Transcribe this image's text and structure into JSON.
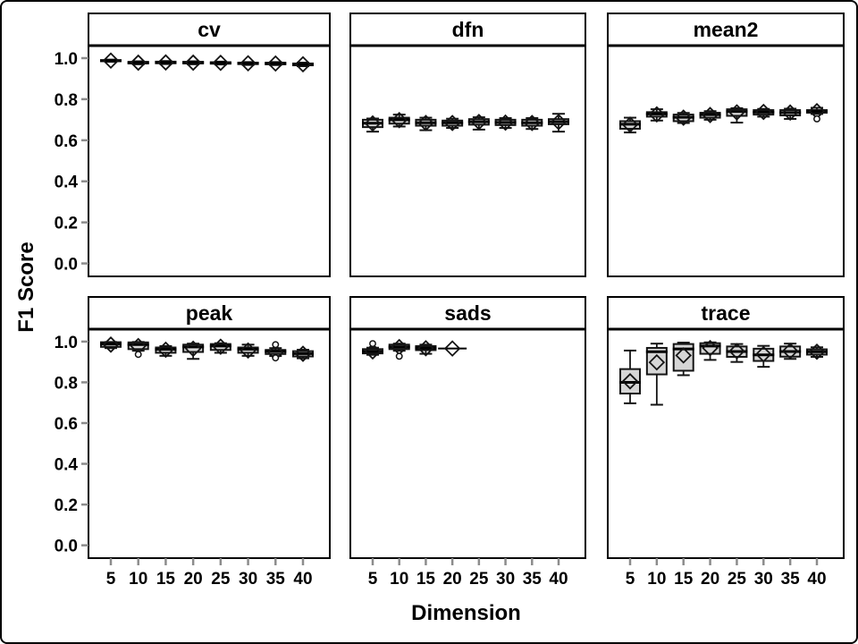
{
  "chart_data": {
    "type": "boxplot",
    "layout": "2x3-panel-grid",
    "xlabel": "Dimension",
    "ylabel": "F1 Score",
    "x_categories": [
      "5",
      "10",
      "15",
      "20",
      "25",
      "30",
      "35",
      "40"
    ],
    "y_tick_labels": [
      "0.0",
      "0.2",
      "0.4",
      "0.6",
      "0.8",
      "1.0"
    ],
    "y_ticks": [
      0.0,
      0.2,
      0.4,
      0.6,
      0.8,
      1.0
    ],
    "ylim": [
      -0.063,
      1.061
    ],
    "grid": false,
    "legend": "none",
    "mean_marker": "open-diamond",
    "outlier_marker": "open-circle",
    "style": {
      "box_fill": "#d6d6d6",
      "box_stroke": "#141414",
      "median_color": "#000000",
      "whisker_color": "#141414",
      "tick_color": "#8c8c8c",
      "text_color": "#000000",
      "panel_border": "#000000",
      "background": "#ffffff"
    },
    "panels": [
      {
        "title": "cv",
        "row": 0,
        "col": 0,
        "boxes": [
          {
            "lo": 0.982,
            "q1": 0.985,
            "med": 0.988,
            "q3": 0.99,
            "hi": 0.993,
            "mean": 0.988,
            "outliers": []
          },
          {
            "lo": 0.97,
            "q1": 0.974,
            "med": 0.978,
            "q3": 0.982,
            "hi": 0.985,
            "mean": 0.978,
            "outliers": []
          },
          {
            "lo": 0.971,
            "q1": 0.975,
            "med": 0.979,
            "q3": 0.983,
            "hi": 0.986,
            "mean": 0.979,
            "outliers": []
          },
          {
            "lo": 0.97,
            "q1": 0.974,
            "med": 0.979,
            "q3": 0.982,
            "hi": 0.985,
            "mean": 0.978,
            "outliers": []
          },
          {
            "lo": 0.969,
            "q1": 0.973,
            "med": 0.977,
            "q3": 0.98,
            "hi": 0.983,
            "mean": 0.977,
            "outliers": []
          },
          {
            "lo": 0.967,
            "q1": 0.971,
            "med": 0.975,
            "q3": 0.978,
            "hi": 0.981,
            "mean": 0.975,
            "outliers": []
          },
          {
            "lo": 0.966,
            "q1": 0.97,
            "med": 0.974,
            "q3": 0.978,
            "hi": 0.981,
            "mean": 0.974,
            "outliers": []
          },
          {
            "lo": 0.961,
            "q1": 0.965,
            "med": 0.97,
            "q3": 0.974,
            "hi": 0.978,
            "mean": 0.97,
            "outliers": []
          }
        ]
      },
      {
        "title": "dfn",
        "row": 0,
        "col": 1,
        "boxes": [
          {
            "lo": 0.642,
            "q1": 0.664,
            "med": 0.683,
            "q3": 0.7,
            "hi": 0.706,
            "mean": 0.682,
            "outliers": []
          },
          {
            "lo": 0.667,
            "q1": 0.681,
            "med": 0.7,
            "q3": 0.71,
            "hi": 0.725,
            "mean": 0.698,
            "outliers": []
          },
          {
            "lo": 0.649,
            "q1": 0.671,
            "med": 0.685,
            "q3": 0.7,
            "hi": 0.71,
            "mean": 0.684,
            "outliers": []
          },
          {
            "lo": 0.66,
            "q1": 0.671,
            "med": 0.685,
            "q3": 0.696,
            "hi": 0.705,
            "mean": 0.684,
            "outliers": []
          },
          {
            "lo": 0.652,
            "q1": 0.676,
            "med": 0.69,
            "q3": 0.703,
            "hi": 0.712,
            "mean": 0.689,
            "outliers": []
          },
          {
            "lo": 0.66,
            "q1": 0.674,
            "med": 0.687,
            "q3": 0.7,
            "hi": 0.708,
            "mean": 0.686,
            "outliers": []
          },
          {
            "lo": 0.655,
            "q1": 0.671,
            "med": 0.685,
            "q3": 0.7,
            "hi": 0.708,
            "mean": 0.684,
            "outliers": []
          },
          {
            "lo": 0.642,
            "q1": 0.678,
            "med": 0.69,
            "q3": 0.703,
            "hi": 0.729,
            "mean": 0.689,
            "outliers": []
          }
        ]
      },
      {
        "title": "mean2",
        "row": 0,
        "col": 2,
        "boxes": [
          {
            "lo": 0.638,
            "q1": 0.656,
            "med": 0.678,
            "q3": 0.693,
            "hi": 0.71,
            "mean": 0.676,
            "outliers": []
          },
          {
            "lo": 0.696,
            "q1": 0.715,
            "med": 0.728,
            "q3": 0.737,
            "hi": 0.751,
            "mean": 0.726,
            "outliers": []
          },
          {
            "lo": 0.684,
            "q1": 0.693,
            "med": 0.712,
            "q3": 0.725,
            "hi": 0.733,
            "mean": 0.71,
            "outliers": []
          },
          {
            "lo": 0.7,
            "q1": 0.71,
            "med": 0.725,
            "q3": 0.734,
            "hi": 0.742,
            "mean": 0.723,
            "outliers": []
          },
          {
            "lo": 0.686,
            "q1": 0.719,
            "med": 0.74,
            "q3": 0.751,
            "hi": 0.756,
            "mean": 0.736,
            "outliers": []
          },
          {
            "lo": 0.715,
            "q1": 0.725,
            "med": 0.737,
            "q3": 0.747,
            "hi": 0.753,
            "mean": 0.738,
            "outliers": []
          },
          {
            "lo": 0.704,
            "q1": 0.721,
            "med": 0.735,
            "q3": 0.747,
            "hi": 0.754,
            "mean": 0.735,
            "outliers": []
          },
          {
            "lo": 0.728,
            "q1": 0.734,
            "med": 0.74,
            "q3": 0.747,
            "hi": 0.758,
            "mean": 0.742,
            "outliers": [
              0.704
            ]
          }
        ]
      },
      {
        "title": "peak",
        "row": 1,
        "col": 0,
        "boxes": [
          {
            "lo": 0.968,
            "q1": 0.974,
            "med": 0.988,
            "q3": 0.997,
            "hi": 0.998,
            "mean": 0.985,
            "outliers": []
          },
          {
            "lo": 0.955,
            "q1": 0.963,
            "med": 0.985,
            "q3": 0.996,
            "hi": 0.998,
            "mean": 0.978,
            "outliers": [
              0.937
            ]
          },
          {
            "lo": 0.93,
            "q1": 0.945,
            "med": 0.962,
            "q3": 0.971,
            "hi": 0.978,
            "mean": 0.96,
            "outliers": []
          },
          {
            "lo": 0.915,
            "q1": 0.949,
            "med": 0.974,
            "q3": 0.985,
            "hi": 0.99,
            "mean": 0.965,
            "outliers": []
          },
          {
            "lo": 0.945,
            "q1": 0.959,
            "med": 0.978,
            "q3": 0.988,
            "hi": 0.992,
            "mean": 0.975,
            "outliers": []
          },
          {
            "lo": 0.93,
            "q1": 0.945,
            "med": 0.963,
            "q3": 0.971,
            "hi": 0.985,
            "mean": 0.956,
            "outliers": []
          },
          {
            "lo": 0.929,
            "q1": 0.939,
            "med": 0.952,
            "q3": 0.959,
            "hi": 0.968,
            "mean": 0.946,
            "outliers": [
              0.985,
              0.92
            ]
          },
          {
            "lo": 0.918,
            "q1": 0.927,
            "med": 0.941,
            "q3": 0.953,
            "hi": 0.96,
            "mean": 0.94,
            "outliers": []
          }
        ]
      },
      {
        "title": "sads",
        "row": 1,
        "col": 1,
        "boxes": [
          {
            "lo": 0.935,
            "q1": 0.942,
            "med": 0.952,
            "q3": 0.963,
            "hi": 0.97,
            "mean": 0.952,
            "outliers": [
              0.99
            ]
          },
          {
            "lo": 0.955,
            "q1": 0.963,
            "med": 0.974,
            "q3": 0.985,
            "hi": 0.99,
            "mean": 0.973,
            "outliers": [
              0.928
            ]
          },
          {
            "lo": 0.94,
            "q1": 0.958,
            "med": 0.968,
            "q3": 0.978,
            "hi": 0.985,
            "mean": 0.967,
            "outliers": []
          },
          {
            "lo": 0.966,
            "q1": 0.966,
            "med": 0.966,
            "q3": 0.966,
            "hi": 0.966,
            "mean": 0.966,
            "outliers": []
          },
          null,
          null,
          null,
          null
        ]
      },
      {
        "title": "trace",
        "row": 1,
        "col": 2,
        "boxes": [
          {
            "lo": 0.697,
            "q1": 0.745,
            "med": 0.8,
            "q3": 0.865,
            "hi": 0.956,
            "mean": 0.805,
            "outliers": []
          },
          {
            "lo": 0.69,
            "q1": 0.839,
            "med": 0.95,
            "q3": 0.969,
            "hi": 0.99,
            "mean": 0.898,
            "outliers": []
          },
          {
            "lo": 0.835,
            "q1": 0.857,
            "med": 0.964,
            "q3": 0.988,
            "hi": 0.995,
            "mean": 0.932,
            "outliers": []
          },
          {
            "lo": 0.91,
            "q1": 0.94,
            "med": 0.978,
            "q3": 0.992,
            "hi": 0.996,
            "mean": 0.968,
            "outliers": []
          },
          {
            "lo": 0.9,
            "q1": 0.925,
            "med": 0.951,
            "q3": 0.976,
            "hi": 0.988,
            "mean": 0.953,
            "outliers": []
          },
          {
            "lo": 0.876,
            "q1": 0.905,
            "med": 0.935,
            "q3": 0.965,
            "hi": 0.979,
            "mean": 0.938,
            "outliers": []
          },
          {
            "lo": 0.915,
            "q1": 0.926,
            "med": 0.951,
            "q3": 0.976,
            "hi": 0.99,
            "mean": 0.954,
            "outliers": []
          },
          {
            "lo": 0.925,
            "q1": 0.936,
            "med": 0.95,
            "q3": 0.962,
            "hi": 0.972,
            "mean": 0.95,
            "outliers": []
          }
        ]
      }
    ]
  }
}
